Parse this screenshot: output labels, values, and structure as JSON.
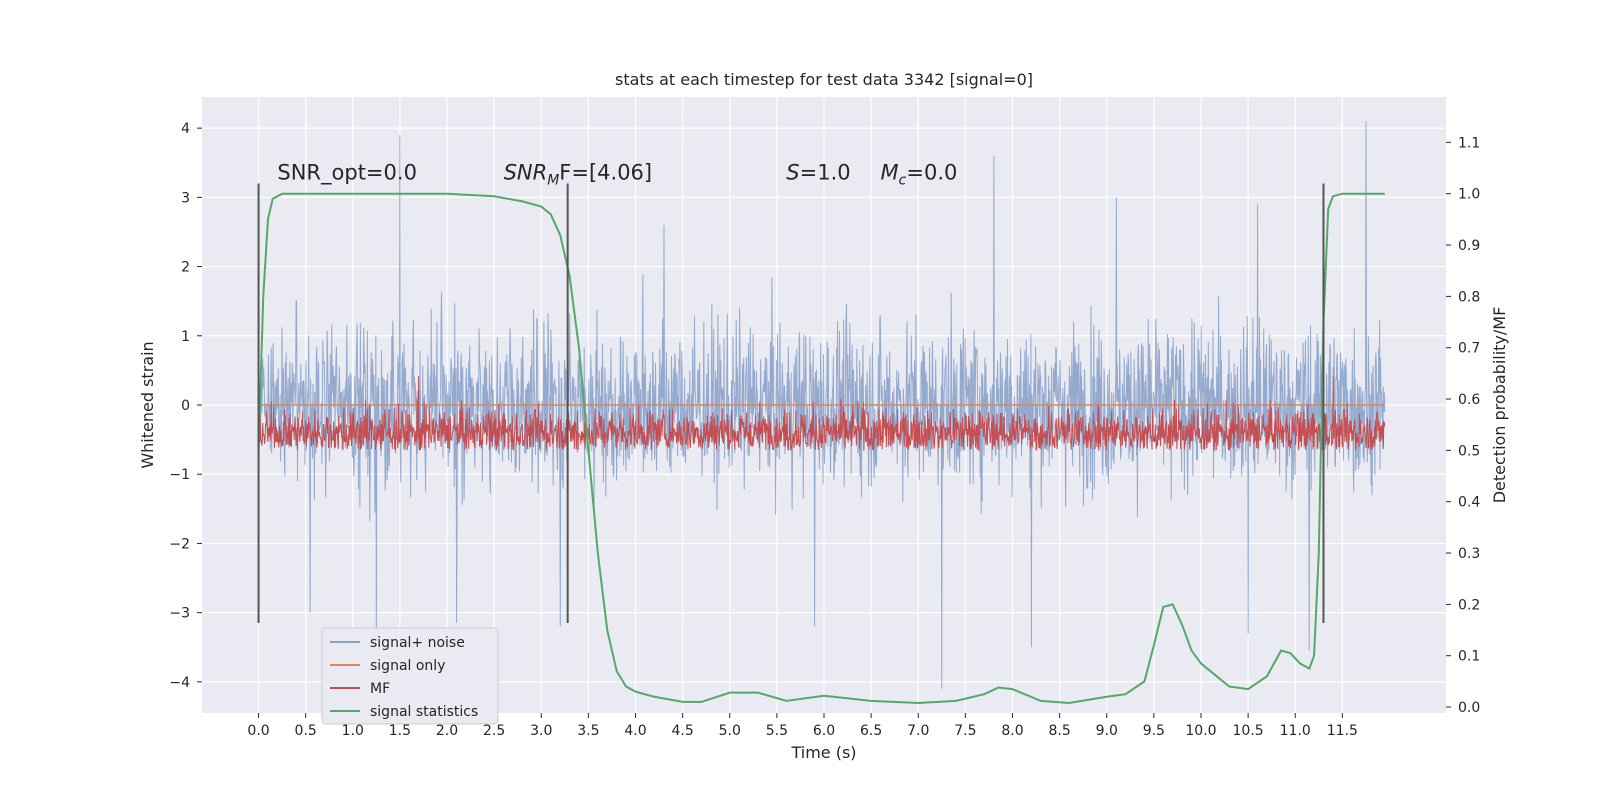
{
  "chart_data": {
    "type": "line",
    "title": "stats at each timestep for test data 3342 [signal=0]",
    "xlabel": "Time (s)",
    "ylabel": "Whitened strain",
    "y2label": "Detection probability/MF",
    "xlim": [
      -0.6,
      12.6
    ],
    "ylim": [
      -4.45,
      4.45
    ],
    "y2lim": [
      -0.0116,
      1.1884
    ],
    "x_ticks": [
      0.0,
      0.5,
      1.0,
      1.5,
      2.0,
      2.5,
      3.0,
      3.5,
      4.0,
      4.5,
      5.0,
      5.5,
      6.0,
      6.5,
      7.0,
      7.5,
      8.0,
      8.5,
      9.0,
      9.5,
      10.0,
      10.5,
      11.0,
      11.5
    ],
    "x_tick_labels": [
      "0.0",
      "0.5",
      "1.0",
      "1.5",
      "2.0",
      "2.5",
      "3.0",
      "3.5",
      "4.0",
      "4.5",
      "5.0",
      "5.5",
      "6.0",
      "6.5",
      "7.0",
      "7.5",
      "8.0",
      "8.5",
      "9.0",
      "9.5",
      "10.0",
      "10.5",
      "11.0",
      "11.5"
    ],
    "y_ticks": [
      -4,
      -3,
      -2,
      -1,
      0,
      1,
      2,
      3,
      4
    ],
    "y_tick_labels": [
      "−4",
      "−3",
      "−2",
      "−1",
      "0",
      "1",
      "2",
      "3",
      "4"
    ],
    "y2_ticks": [
      0.0,
      0.1,
      0.2,
      0.3,
      0.4,
      0.5,
      0.6,
      0.7,
      0.8,
      0.9,
      1.0,
      1.1
    ],
    "y2_tick_labels": [
      "0.0",
      "0.1",
      "0.2",
      "0.3",
      "0.4",
      "0.5",
      "0.6",
      "0.7",
      "0.8",
      "0.9",
      "1.0",
      "1.1"
    ],
    "grid": true,
    "legend_position": "lower-left",
    "series": [
      {
        "name": "signal+ noise",
        "color": "#4c72b0",
        "axis": "left",
        "x_range": [
          0.0,
          11.95
        ],
        "band": [
          -2.0,
          2.0
        ],
        "peaks_max": [
          [
            1.5,
            3.9
          ],
          [
            4.3,
            2.6
          ],
          [
            7.8,
            3.6
          ],
          [
            9.1,
            3.0
          ],
          [
            10.6,
            2.9
          ],
          [
            11.75,
            4.1
          ]
        ],
        "peaks_min": [
          [
            0.55,
            -3.0
          ],
          [
            1.25,
            -3.6
          ],
          [
            2.1,
            -3.15
          ],
          [
            3.2,
            -3.2
          ],
          [
            5.9,
            -3.2
          ],
          [
            7.25,
            -4.1
          ],
          [
            8.2,
            -3.5
          ],
          [
            10.5,
            -3.3
          ],
          [
            11.15,
            -3.55
          ]
        ]
      },
      {
        "name": "signal only",
        "color": "#dd8452",
        "axis": "left",
        "x": [
          0.0,
          11.95
        ],
        "y": [
          0.0,
          0.0
        ]
      },
      {
        "name": "MF",
        "color": "#c44e52",
        "axis": "right",
        "x_range": [
          0.0,
          11.95
        ],
        "band": [
          0.5,
          0.6
        ],
        "peaks_max": [
          [
            1.7,
            0.645
          ],
          [
            11.4,
            0.645
          ]
        ]
      },
      {
        "name": "signal statistics",
        "color": "#55a868",
        "axis": "right",
        "x": [
          0.0,
          0.05,
          0.1,
          0.15,
          0.25,
          0.5,
          1.0,
          2.0,
          2.5,
          2.8,
          3.0,
          3.1,
          3.2,
          3.3,
          3.4,
          3.5,
          3.6,
          3.7,
          3.8,
          3.9,
          4.0,
          4.2,
          4.5,
          4.7,
          5.0,
          5.3,
          5.6,
          6.0,
          6.5,
          7.0,
          7.4,
          7.7,
          7.85,
          8.0,
          8.3,
          8.6,
          9.0,
          9.2,
          9.4,
          9.5,
          9.6,
          9.7,
          9.8,
          9.9,
          10.0,
          10.3,
          10.5,
          10.7,
          10.85,
          10.95,
          11.05,
          11.15,
          11.2,
          11.25,
          11.3,
          11.35,
          11.4,
          11.5,
          11.7,
          11.95
        ],
        "y": [
          0.5,
          0.8,
          0.95,
          0.99,
          1.0,
          1.0,
          1.0,
          1.0,
          0.995,
          0.985,
          0.975,
          0.96,
          0.92,
          0.84,
          0.7,
          0.5,
          0.3,
          0.15,
          0.07,
          0.04,
          0.03,
          0.02,
          0.01,
          0.01,
          0.028,
          0.028,
          0.012,
          0.022,
          0.012,
          0.008,
          0.012,
          0.025,
          0.038,
          0.035,
          0.012,
          0.008,
          0.02,
          0.025,
          0.05,
          0.12,
          0.195,
          0.2,
          0.16,
          0.11,
          0.085,
          0.04,
          0.035,
          0.06,
          0.11,
          0.105,
          0.085,
          0.075,
          0.1,
          0.3,
          0.75,
          0.97,
          0.995,
          1.0,
          1.0,
          1.0
        ]
      }
    ],
    "vertical_lines": [
      {
        "x": 0.0,
        "ymin": -3.15,
        "ymax": 3.2
      },
      {
        "x": 3.28,
        "ymin": -3.15,
        "ymax": 3.2
      },
      {
        "x": 11.3,
        "ymin": -3.15,
        "ymax": 3.2
      }
    ],
    "annotations": [
      {
        "x": 0.2,
        "y": 3.2,
        "text": "SNR_opt=0.0",
        "italic": false
      },
      {
        "x": 2.6,
        "y": 3.2,
        "text": "SNR_MF=[4.06]",
        "italic": true,
        "base": "SNR",
        "sub": "M",
        "rest": "F=[4.06]"
      },
      {
        "x": 5.6,
        "y": 3.2,
        "text": "S=1.0",
        "italic": true,
        "base": "S",
        "sub": "",
        "rest": "=1.0"
      },
      {
        "x": 6.6,
        "y": 3.2,
        "text": "M_c=0.0",
        "italic": true,
        "base": "M",
        "sub": "c",
        "rest": "=0.0"
      }
    ],
    "colors": {
      "plot_background": "#eaeaf2",
      "grid": "#ffffff",
      "vertical_lines": "#555555"
    }
  }
}
